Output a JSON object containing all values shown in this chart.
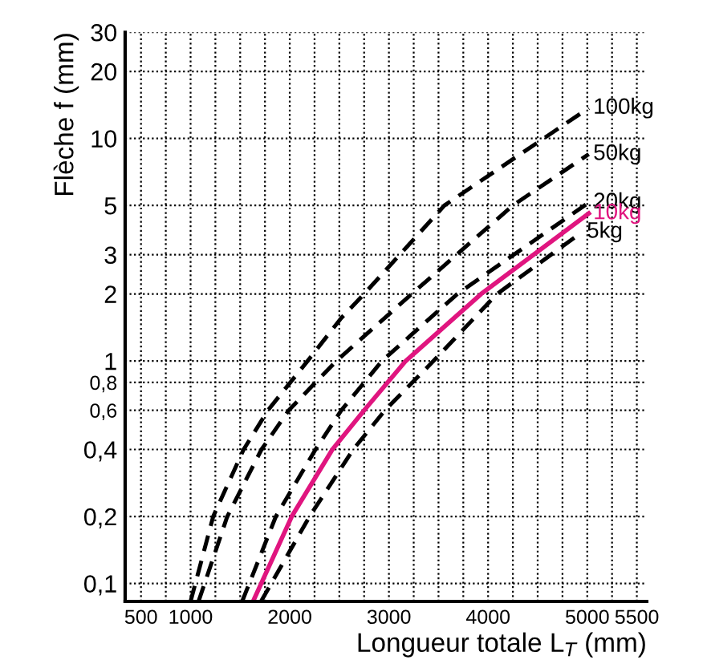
{
  "chart_data": {
    "type": "line",
    "xlabel": "Longueur totale L$_{T}$ (mm)",
    "ylabel": "Flèche f (mm)",
    "log": "y",
    "xlim": [
      340,
      5600
    ],
    "ylim": [
      0.083,
      30
    ],
    "xticks": [
      500,
      {
        "value": 750,
        "label": null
      },
      1000,
      {
        "value": 1250,
        "label": null
      },
      {
        "value": 1500,
        "label": null
      },
      {
        "value": 1750,
        "label": null
      },
      2000,
      {
        "value": 2250,
        "label": null
      },
      {
        "value": 2500,
        "label": null
      },
      {
        "value": 2750,
        "label": null
      },
      3000,
      {
        "value": 3250,
        "label": null
      },
      {
        "value": 3500,
        "label": null
      },
      {
        "value": 3750,
        "label": null
      },
      4000,
      {
        "value": 4250,
        "label": null
      },
      {
        "value": 4500,
        "label": null
      },
      {
        "value": 4750,
        "label": null
      },
      5000,
      {
        "value": 5250,
        "label": null
      },
      5500
    ],
    "yticks": [
      {
        "value": 0.1,
        "label": "0,1"
      },
      {
        "value": 0.2,
        "label": "0,2"
      },
      {
        "value": 0.4,
        "label": "0,4"
      },
      {
        "value": 0.6,
        "label": "0,6"
      },
      {
        "value": 0.8,
        "label": "0,8"
      },
      1,
      2,
      3,
      5,
      10,
      20,
      30
    ],
    "grid": true,
    "legend": false,
    "marker": "none",
    "series": [
      {
        "name": "100kg",
        "color": "#000000",
        "line_style": "dashed",
        "x": [
          1000,
          1228,
          1535,
          1780,
          2180,
          2520,
          2750,
          3560,
          5015
        ],
        "values": [
          0.083,
          0.2,
          0.4,
          0.6,
          1,
          1.56,
          2,
          5,
          13.7
        ]
      },
      {
        "name": "50kg",
        "color": "#000000",
        "line_style": "dashed",
        "x": [
          1080,
          1370,
          1715,
          1990,
          2470,
          3230,
          4250,
          5015
        ],
        "values": [
          0.083,
          0.2,
          0.4,
          0.6,
          1,
          2,
          5,
          8.5
        ]
      },
      {
        "name": "20kg",
        "color": "#000000",
        "line_style": "dashed",
        "x": [
          1520,
          1860,
          2260,
          2520,
          2930,
          3690,
          5015
        ],
        "values": [
          0.083,
          0.2,
          0.4,
          0.6,
          1,
          2,
          5.15
        ]
      },
      {
        "name": "10kg",
        "color": "#e0157f",
        "line_style": "solid",
        "x": [
          1630,
          2020,
          2430,
          2750,
          3170,
          3930,
          5015
        ],
        "values": [
          0.083,
          0.2,
          0.4,
          0.6,
          1,
          2,
          4.6
        ]
      },
      {
        "name": "5kg",
        "color": "#000000",
        "line_style": "dashed",
        "x": [
          1710,
          2200,
          2640,
          2960,
          3450,
          4090,
          4950
        ],
        "values": [
          0.083,
          0.2,
          0.4,
          0.6,
          1,
          2,
          3.8
        ]
      }
    ]
  }
}
